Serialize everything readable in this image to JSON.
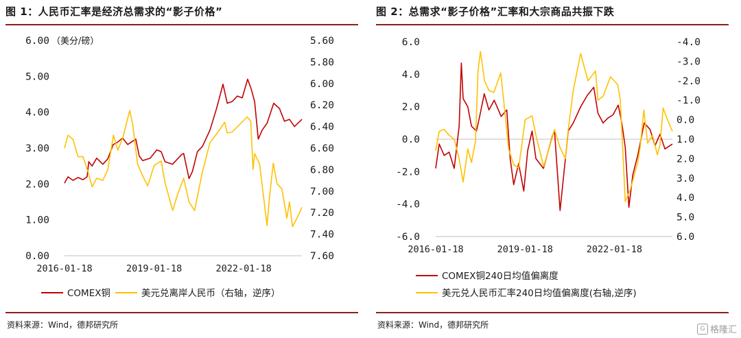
{
  "panels": {
    "left": {
      "title": "图 1：人民币汇率是经济总需求的“影子价格”",
      "unit": "（美分/磅）",
      "source": "资料来源：Wind，德邦研究所"
    },
    "right": {
      "title": "图 2：总需求“影子价格”汇率和大宗商品共振下跌",
      "source": "资料来源：Wind，德邦研究所"
    }
  },
  "watermark": {
    "text": "格隆汇",
    "icon": "g-logo-icon"
  },
  "colors": {
    "red": "#c00000",
    "gold": "#ffc000",
    "rule": "#8c1f1f"
  },
  "chart_data": [
    {
      "type": "line",
      "title": "图 1：人民币汇率是经济总需求的“影子价格”",
      "unit_left": "（美分/磅）",
      "x_tick_labels": [
        "2016-01-18",
        "2019-01-18",
        "2022-01-18"
      ],
      "x_range": [
        "2016-01-18",
        "2023-12-31"
      ],
      "y_left": {
        "ticks": [
          "0.00",
          "1.00",
          "2.00",
          "3.00",
          "4.00",
          "5.00",
          "6.00"
        ],
        "range": [
          0,
          6
        ]
      },
      "y_right": {
        "ticks": [
          "5.60",
          "5.80",
          "6.00",
          "6.20",
          "6.40",
          "6.60",
          "6.80",
          "7.00",
          "7.20",
          "7.40",
          "7.60"
        ],
        "range": [
          5.6,
          7.6
        ],
        "inverted": true
      },
      "grid": false,
      "legend_position": "bottom",
      "series": [
        {
          "name": "COMEX铜",
          "axis": "left",
          "color": "#c00000",
          "points": [
            [
              "2016-01-18",
              2.02
            ],
            [
              "2016-03-01",
              2.2
            ],
            [
              "2016-05-01",
              2.1
            ],
            [
              "2016-07-01",
              2.18
            ],
            [
              "2016-09-01",
              2.12
            ],
            [
              "2016-10-20",
              2.2
            ],
            [
              "2016-11-10",
              2.62
            ],
            [
              "2016-12-20",
              2.5
            ],
            [
              "2017-02-15",
              2.72
            ],
            [
              "2017-05-01",
              2.55
            ],
            [
              "2017-07-01",
              2.7
            ],
            [
              "2017-09-05",
              3.1
            ],
            [
              "2017-10-20",
              3.15
            ],
            [
              "2017-12-28",
              3.28
            ],
            [
              "2018-03-01",
              3.1
            ],
            [
              "2018-06-08",
              3.25
            ],
            [
              "2018-07-20",
              2.78
            ],
            [
              "2018-09-01",
              2.65
            ],
            [
              "2018-12-01",
              2.72
            ],
            [
              "2019-02-20",
              2.95
            ],
            [
              "2019-04-15",
              2.9
            ],
            [
              "2019-06-01",
              2.62
            ],
            [
              "2019-09-01",
              2.55
            ],
            [
              "2019-12-20",
              2.82
            ],
            [
              "2020-01-15",
              2.85
            ],
            [
              "2020-03-20",
              2.15
            ],
            [
              "2020-05-01",
              2.35
            ],
            [
              "2020-07-01",
              2.9
            ],
            [
              "2020-09-01",
              3.05
            ],
            [
              "2020-12-01",
              3.5
            ],
            [
              "2021-02-20",
              4.1
            ],
            [
              "2021-05-10",
              4.78
            ],
            [
              "2021-07-01",
              4.25
            ],
            [
              "2021-09-01",
              4.3
            ],
            [
              "2021-11-01",
              4.45
            ],
            [
              "2022-01-01",
              4.4
            ],
            [
              "2022-03-07",
              4.92
            ],
            [
              "2022-04-20",
              4.65
            ],
            [
              "2022-06-01",
              4.3
            ],
            [
              "2022-07-15",
              3.25
            ],
            [
              "2022-09-01",
              3.5
            ],
            [
              "2022-11-01",
              3.7
            ],
            [
              "2023-01-20",
              4.25
            ],
            [
              "2023-04-01",
              4.1
            ],
            [
              "2023-06-01",
              3.75
            ],
            [
              "2023-08-01",
              3.8
            ],
            [
              "2023-10-01",
              3.6
            ],
            [
              "2023-12-31",
              3.8
            ]
          ]
        },
        {
          "name": "美元兑离岸人民币（右轴，逆序）",
          "axis": "right",
          "color": "#ffc000",
          "points": [
            [
              "2016-01-18",
              6.6
            ],
            [
              "2016-03-01",
              6.48
            ],
            [
              "2016-05-01",
              6.52
            ],
            [
              "2016-07-01",
              6.68
            ],
            [
              "2016-09-01",
              6.68
            ],
            [
              "2016-11-01",
              6.82
            ],
            [
              "2016-12-20",
              6.96
            ],
            [
              "2017-02-15",
              6.88
            ],
            [
              "2017-05-01",
              6.9
            ],
            [
              "2017-07-01",
              6.8
            ],
            [
              "2017-09-08",
              6.48
            ],
            [
              "2017-11-01",
              6.62
            ],
            [
              "2018-01-01",
              6.5
            ],
            [
              "2018-03-26",
              6.25
            ],
            [
              "2018-05-01",
              6.38
            ],
            [
              "2018-07-01",
              6.75
            ],
            [
              "2018-09-01",
              6.86
            ],
            [
              "2018-11-01",
              6.95
            ],
            [
              "2019-01-20",
              6.76
            ],
            [
              "2019-04-15",
              6.72
            ],
            [
              "2019-06-01",
              6.92
            ],
            [
              "2019-09-03",
              7.18
            ],
            [
              "2019-11-01",
              7.03
            ],
            [
              "2020-01-15",
              6.88
            ],
            [
              "2020-03-20",
              7.1
            ],
            [
              "2020-05-27",
              7.18
            ],
            [
              "2020-07-01",
              7.05
            ],
            [
              "2020-09-01",
              6.82
            ],
            [
              "2020-12-01",
              6.55
            ],
            [
              "2021-03-01",
              6.46
            ],
            [
              "2021-05-31",
              6.36
            ],
            [
              "2021-07-01",
              6.46
            ],
            [
              "2021-09-01",
              6.45
            ],
            [
              "2021-12-01",
              6.38
            ],
            [
              "2022-03-01",
              6.31
            ],
            [
              "2022-04-15",
              6.35
            ],
            [
              "2022-05-12",
              6.8
            ],
            [
              "2022-06-01",
              6.65
            ],
            [
              "2022-08-01",
              6.75
            ],
            [
              "2022-10-31",
              7.32
            ],
            [
              "2022-12-01",
              7.05
            ],
            [
              "2023-01-15",
              6.74
            ],
            [
              "2023-03-01",
              6.93
            ],
            [
              "2023-05-01",
              6.98
            ],
            [
              "2023-06-30",
              7.25
            ],
            [
              "2023-08-01",
              7.1
            ],
            [
              "2023-09-08",
              7.33
            ],
            [
              "2023-11-01",
              7.25
            ],
            [
              "2023-12-31",
              7.15
            ]
          ]
        }
      ]
    },
    {
      "type": "line",
      "title": "图 2：总需求“影子价格”汇率和大宗商品共振下跌",
      "x_tick_labels": [
        "2016-01-18",
        "2019-01-18",
        "2022-01-18"
      ],
      "x_range": [
        "2016-01-18",
        "2023-12-31"
      ],
      "y_left": {
        "ticks": [
          "-6.0",
          "-4.0",
          "-2.0",
          "0.0",
          "2.0",
          "4.0",
          "6.0"
        ],
        "range": [
          -6,
          6
        ]
      },
      "y_right": {
        "ticks": [
          "-4.0",
          "-3.0",
          "-2.0",
          "-1.0",
          "0.0",
          "1.0",
          "2.0",
          "3.0",
          "4.0",
          "5.0",
          "6.0"
        ],
        "range": [
          -4,
          6
        ],
        "inverted": true
      },
      "zero_line": true,
      "grid": false,
      "legend_position": "bottom",
      "series": [
        {
          "name": "COMEX铜240日均值偏离度",
          "axis": "left",
          "color": "#c00000",
          "points": [
            [
              "2016-01-18",
              -1.8
            ],
            [
              "2016-03-01",
              -0.3
            ],
            [
              "2016-05-01",
              -1.0
            ],
            [
              "2016-07-01",
              -0.8
            ],
            [
              "2016-09-01",
              -1.8
            ],
            [
              "2016-11-01",
              0.8
            ],
            [
              "2016-11-28",
              4.7
            ],
            [
              "2016-12-20",
              2.5
            ],
            [
              "2017-02-15",
              2.0
            ],
            [
              "2017-04-01",
              0.8
            ],
            [
              "2017-06-01",
              0.5
            ],
            [
              "2017-07-15",
              1.5
            ],
            [
              "2017-09-05",
              2.8
            ],
            [
              "2017-11-01",
              1.8
            ],
            [
              "2018-01-05",
              2.4
            ],
            [
              "2018-04-01",
              1.4
            ],
            [
              "2018-06-08",
              1.8
            ],
            [
              "2018-07-20",
              -1.2
            ],
            [
              "2018-09-01",
              -2.8
            ],
            [
              "2018-11-01",
              -1.5
            ],
            [
              "2019-01-03",
              -3.2
            ],
            [
              "2019-02-20",
              -0.7
            ],
            [
              "2019-04-15",
              0.5
            ],
            [
              "2019-06-01",
              -1.2
            ],
            [
              "2019-09-01",
              -1.8
            ],
            [
              "2019-12-20",
              0.2
            ],
            [
              "2020-01-15",
              0.5
            ],
            [
              "2020-03-23",
              -4.4
            ],
            [
              "2020-05-01",
              -2.5
            ],
            [
              "2020-07-01",
              0.5
            ],
            [
              "2020-09-01",
              1.0
            ],
            [
              "2020-12-01",
              2.0
            ],
            [
              "2021-02-20",
              2.7
            ],
            [
              "2021-05-10",
              3.2
            ],
            [
              "2021-07-01",
              1.6
            ],
            [
              "2021-09-01",
              1.0
            ],
            [
              "2021-11-01",
              1.3
            ],
            [
              "2022-01-01",
              1.5
            ],
            [
              "2022-03-07",
              2.1
            ],
            [
              "2022-04-20",
              1.0
            ],
            [
              "2022-06-01",
              -0.5
            ],
            [
              "2022-07-15",
              -4.2
            ],
            [
              "2022-09-01",
              -2.2
            ],
            [
              "2022-11-01",
              -1.0
            ],
            [
              "2023-01-20",
              1.0
            ],
            [
              "2023-04-01",
              0.6
            ],
            [
              "2023-06-01",
              -0.4
            ],
            [
              "2023-08-01",
              0.3
            ],
            [
              "2023-10-01",
              -0.6
            ],
            [
              "2023-12-31",
              -0.3
            ]
          ]
        },
        {
          "name": "美元兑人民币汇率240日均值偏离度(右轴,逆序)",
          "axis": "right",
          "color": "#ffc000",
          "points": [
            [
              "2016-01-18",
              1.6
            ],
            [
              "2016-03-01",
              0.6
            ],
            [
              "2016-05-01",
              0.5
            ],
            [
              "2016-07-01",
              0.8
            ],
            [
              "2016-09-01",
              1.0
            ],
            [
              "2016-11-01",
              2.0
            ],
            [
              "2016-12-20",
              3.2
            ],
            [
              "2017-02-15",
              1.5
            ],
            [
              "2017-04-01",
              2.2
            ],
            [
              "2017-05-20",
              1.1
            ],
            [
              "2017-06-20",
              -2.5
            ],
            [
              "2017-07-20",
              -3.5
            ],
            [
              "2017-09-08",
              -2.0
            ],
            [
              "2017-11-01",
              -1.5
            ],
            [
              "2018-01-01",
              -1.4
            ],
            [
              "2018-03-26",
              -2.4
            ],
            [
              "2018-05-01",
              -1.0
            ],
            [
              "2018-07-01",
              1.5
            ],
            [
              "2018-09-01",
              2.3
            ],
            [
              "2018-11-01",
              2.5
            ],
            [
              "2019-01-20",
              0.0
            ],
            [
              "2019-04-15",
              -0.2
            ],
            [
              "2019-06-01",
              0.8
            ],
            [
              "2019-09-03",
              2.4
            ],
            [
              "2019-11-01",
              1.6
            ],
            [
              "2020-01-15",
              0.5
            ],
            [
              "2020-03-20",
              1.4
            ],
            [
              "2020-05-27",
              2.0
            ],
            [
              "2020-07-01",
              0.5
            ],
            [
              "2020-09-01",
              -1.5
            ],
            [
              "2020-12-01",
              -3.4
            ],
            [
              "2021-03-01",
              -2.0
            ],
            [
              "2021-05-31",
              -2.5
            ],
            [
              "2021-07-01",
              -1.0
            ],
            [
              "2021-09-01",
              -1.2
            ],
            [
              "2021-12-01",
              -2.2
            ],
            [
              "2022-03-01",
              -1.8
            ],
            [
              "2022-04-01",
              -1.0
            ],
            [
              "2022-05-12",
              2.5
            ],
            [
              "2022-06-01",
              4.2
            ],
            [
              "2022-08-01",
              3.6
            ],
            [
              "2022-10-31",
              2.2
            ],
            [
              "2022-12-01",
              1.4
            ],
            [
              "2023-01-15",
              -0.5
            ],
            [
              "2023-03-01",
              1.2
            ],
            [
              "2023-05-01",
              0.8
            ],
            [
              "2023-06-30",
              1.8
            ],
            [
              "2023-08-01",
              1.3
            ],
            [
              "2023-09-08",
              -0.6
            ],
            [
              "2023-11-01",
              0.0
            ],
            [
              "2023-12-31",
              0.6
            ]
          ]
        }
      ]
    }
  ]
}
